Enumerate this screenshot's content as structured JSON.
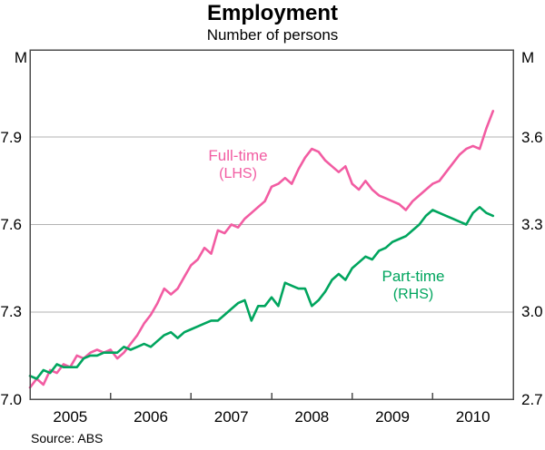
{
  "header": {
    "title": "Employment",
    "subtitle": "Number of persons"
  },
  "footer": {
    "source": "Source: ABS"
  },
  "axes": {
    "left_unit": "M",
    "right_unit": "M",
    "left_tick_labels": [
      "7.0",
      "7.3",
      "7.6",
      "7.9"
    ],
    "right_tick_labels": [
      "2.7",
      "3.0",
      "3.3",
      "3.6"
    ],
    "x_labels": [
      "2005",
      "2006",
      "2007",
      "2008",
      "2009",
      "2010"
    ]
  },
  "annotations": {
    "fulltime_label": "Full-time",
    "fulltime_sub": "(LHS)",
    "parttime_label": "Part-time",
    "parttime_sub": "(RHS)"
  },
  "colors": {
    "fulltime": "#f25ca2",
    "parttime": "#00a55e",
    "grid": "#b3b3b3",
    "frame": "#4d4d4d",
    "text": "#000000"
  },
  "chart_data": {
    "type": "line",
    "title": "Employment",
    "subtitle": "Number of persons",
    "frequency": "monthly",
    "x_start": "2005-01",
    "x_end": "2010-10",
    "x_range_years": [
      2005,
      2011
    ],
    "xticklabels": [
      "2005",
      "2006",
      "2007",
      "2008",
      "2009",
      "2010"
    ],
    "grid": "horizontal gridlines at shared tick levels",
    "legend_position": "inline labels next to lines",
    "left_axis": {
      "label": "M",
      "ylim": [
        7.0,
        8.2
      ],
      "yticks": [
        7.0,
        7.3,
        7.6,
        7.9
      ]
    },
    "right_axis": {
      "label": "M",
      "ylim": [
        2.7,
        3.9
      ],
      "yticks": [
        2.7,
        3.0,
        3.3,
        3.6
      ]
    },
    "series": [
      {
        "name": "Full-time",
        "axis": "LHS",
        "color": "#f25ca2",
        "values": [
          7.04,
          7.07,
          7.05,
          7.1,
          7.09,
          7.12,
          7.11,
          7.15,
          7.14,
          7.16,
          7.17,
          7.16,
          7.17,
          7.14,
          7.16,
          7.19,
          7.22,
          7.26,
          7.29,
          7.33,
          7.38,
          7.36,
          7.38,
          7.42,
          7.46,
          7.48,
          7.52,
          7.5,
          7.58,
          7.57,
          7.6,
          7.59,
          7.62,
          7.64,
          7.66,
          7.68,
          7.73,
          7.74,
          7.76,
          7.74,
          7.79,
          7.83,
          7.86,
          7.85,
          7.82,
          7.8,
          7.78,
          7.8,
          7.74,
          7.72,
          7.75,
          7.72,
          7.7,
          7.69,
          7.68,
          7.67,
          7.65,
          7.68,
          7.7,
          7.72,
          7.74,
          7.75,
          7.78,
          7.81,
          7.84,
          7.86,
          7.87,
          7.86,
          7.93,
          7.99
        ]
      },
      {
        "name": "Part-time",
        "axis": "RHS",
        "color": "#00a55e",
        "values": [
          2.78,
          2.77,
          2.8,
          2.79,
          2.82,
          2.81,
          2.81,
          2.81,
          2.84,
          2.85,
          2.85,
          2.86,
          2.86,
          2.86,
          2.88,
          2.87,
          2.88,
          2.89,
          2.88,
          2.9,
          2.92,
          2.93,
          2.91,
          2.93,
          2.94,
          2.95,
          2.96,
          2.97,
          2.97,
          2.99,
          3.01,
          3.03,
          3.04,
          2.97,
          3.02,
          3.02,
          3.05,
          3.02,
          3.1,
          3.09,
          3.08,
          3.08,
          3.02,
          3.04,
          3.07,
          3.11,
          3.13,
          3.11,
          3.15,
          3.17,
          3.19,
          3.18,
          3.21,
          3.22,
          3.24,
          3.25,
          3.26,
          3.28,
          3.3,
          3.33,
          3.35,
          3.34,
          3.33,
          3.32,
          3.31,
          3.3,
          3.34,
          3.36,
          3.34,
          3.33
        ]
      }
    ]
  }
}
